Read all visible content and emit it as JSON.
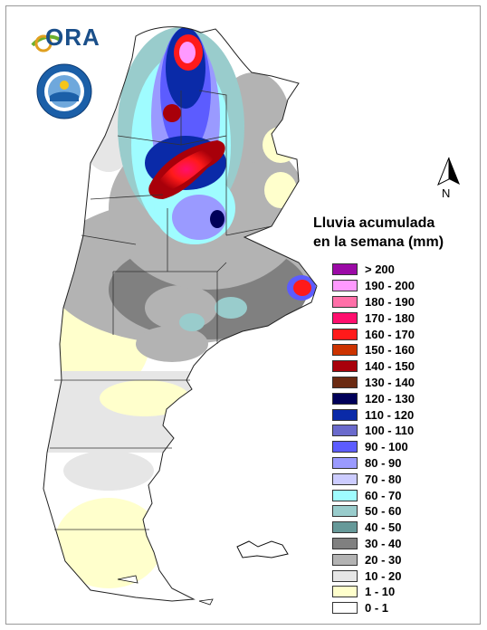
{
  "logo": {
    "text": "ORA",
    "seal_text": "SERVICIO METEOROLÓGICO NACIONAL · ARGENTINA"
  },
  "north_arrow": {
    "label": "N"
  },
  "legend": {
    "title_line1": "Lluvia acumulada",
    "title_line2": "en la semana (mm)",
    "classes": [
      {
        "label": "> 200",
        "color": "#9b0aa6"
      },
      {
        "label": "190 - 200",
        "color": "#ff99ff"
      },
      {
        "label": "180 - 190",
        "color": "#ff6fa8"
      },
      {
        "label": "170 - 180",
        "color": "#ff0f6e"
      },
      {
        "label": "160 - 170",
        "color": "#ff1a1a"
      },
      {
        "label": "150 - 160",
        "color": "#cc3300"
      },
      {
        "label": "140 - 150",
        "color": "#a8000a"
      },
      {
        "label": "130 - 140",
        "color": "#6b2a12"
      },
      {
        "label": "120 - 130",
        "color": "#000059"
      },
      {
        "label": "110 - 120",
        "color": "#0a2aa8"
      },
      {
        "label": "100 - 110",
        "color": "#6a6acc"
      },
      {
        "label": "90 - 100",
        "color": "#5c5cff"
      },
      {
        "label": "80 - 90",
        "color": "#9a9aff"
      },
      {
        "label": "70 - 80",
        "color": "#ccccff"
      },
      {
        "label": "60 - 70",
        "color": "#9ffcff"
      },
      {
        "label": "50 - 60",
        "color": "#99cccc"
      },
      {
        "label": "40 - 50",
        "color": "#669999"
      },
      {
        "label": "30 - 40",
        "color": "#808080"
      },
      {
        "label": "20 - 30",
        "color": "#b3b3b3"
      },
      {
        "label": "10 - 20",
        "color": "#e6e6e6"
      },
      {
        "label": "1 - 10",
        "color": "#ffffcc"
      },
      {
        "label": "0 - 1",
        "color": "#ffffff"
      }
    ]
  }
}
